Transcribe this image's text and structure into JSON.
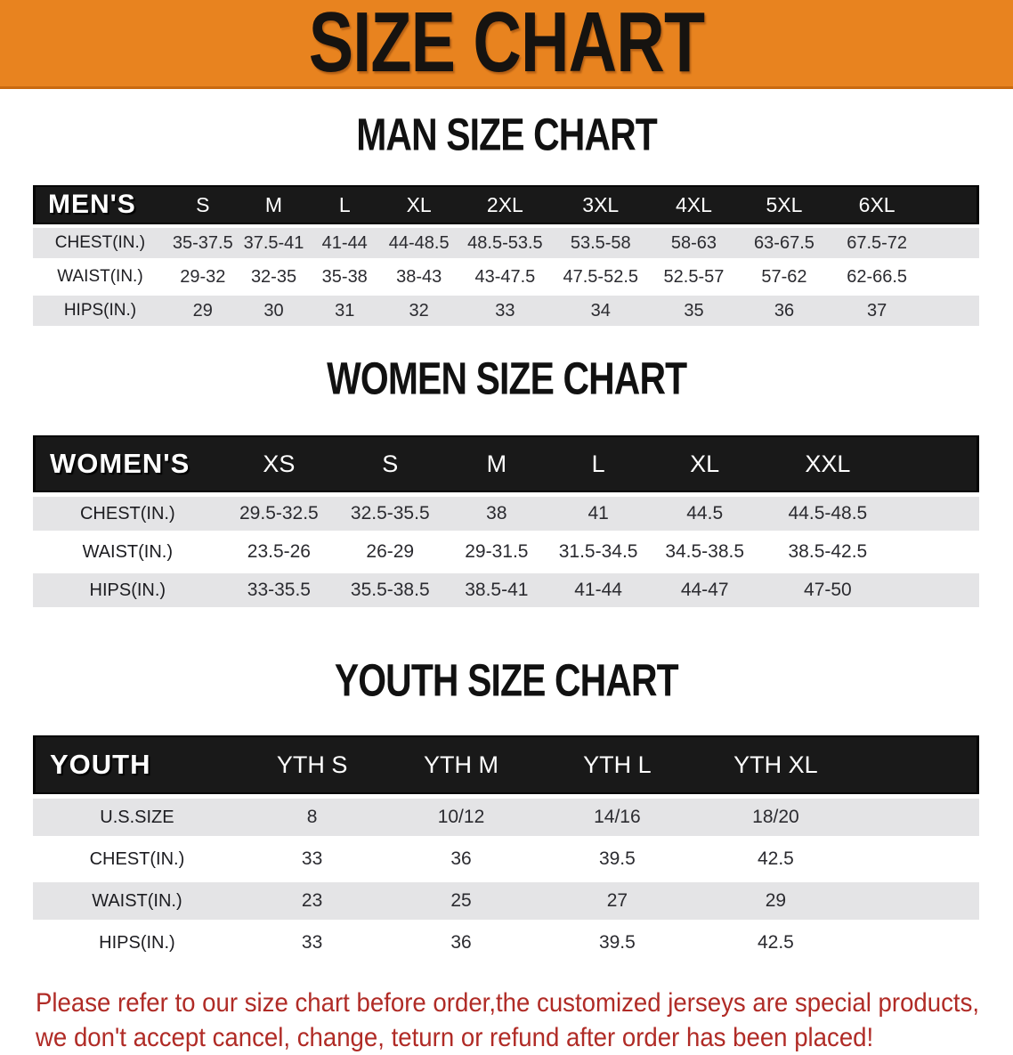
{
  "banner": {
    "title": "SIZE CHART",
    "bg_color": "#E8831F",
    "edge_color": "#C9690F"
  },
  "sections": {
    "men": {
      "title": "MAN SIZE CHART",
      "table": {
        "label": "MEN'S",
        "columns": [
          "S",
          "M",
          "L",
          "XL",
          "2XL",
          "3XL",
          "4XL",
          "5XL",
          "6XL"
        ],
        "rows": [
          {
            "label": "CHEST(IN.)",
            "values": [
              "35-37.5",
              "37.5-41",
              "41-44",
              "44-48.5",
              "48.5-53.5",
              "53.5-58",
              "58-63",
              "63-67.5",
              "67.5-72"
            ]
          },
          {
            "label": "WAIST(IN.)",
            "values": [
              "29-32",
              "32-35",
              "35-38",
              "38-43",
              "43-47.5",
              "47.5-52.5",
              "52.5-57",
              "57-62",
              "62-66.5"
            ]
          },
          {
            "label": "HIPS(IN.)",
            "values": [
              "29",
              "30",
              "31",
              "32",
              "33",
              "34",
              "35",
              "36",
              "37"
            ]
          }
        ]
      }
    },
    "women": {
      "title": "WOMEN SIZE CHART",
      "table": {
        "label": "WOMEN'S",
        "columns": [
          "XS",
          "S",
          "M",
          "L",
          "XL",
          "XXL"
        ],
        "rows": [
          {
            "label": "CHEST(IN.)",
            "values": [
              "29.5-32.5",
              "32.5-35.5",
              "38",
              "41",
              "44.5",
              "44.5-48.5"
            ]
          },
          {
            "label": "WAIST(IN.)",
            "values": [
              "23.5-26",
              "26-29",
              "29-31.5",
              "31.5-34.5",
              "34.5-38.5",
              "38.5-42.5"
            ]
          },
          {
            "label": "HIPS(IN.)",
            "values": [
              "33-35.5",
              "35.5-38.5",
              "38.5-41",
              "41-44",
              "44-47",
              "47-50"
            ]
          }
        ]
      }
    },
    "youth": {
      "title": "YOUTH SIZE CHART",
      "table": {
        "label": "YOUTH",
        "columns": [
          "YTH S",
          "YTH M",
          "YTH L",
          "YTH XL"
        ],
        "rows": [
          {
            "label": "U.S.SIZE",
            "values": [
              "8",
              "10/12",
              "14/16",
              "18/20"
            ]
          },
          {
            "label": "CHEST(IN.)",
            "values": [
              "33",
              "36",
              "39.5",
              "42.5"
            ]
          },
          {
            "label": "WAIST(IN.)",
            "values": [
              "23",
              "25",
              "27",
              "29"
            ]
          },
          {
            "label": "HIPS(IN.)",
            "values": [
              "33",
              "36",
              "39.5",
              "42.5"
            ]
          }
        ]
      }
    }
  },
  "disclaimer": {
    "line1": "Please refer to our size chart before order,the customized jerseys are special products,",
    "line2": "we don't accept cancel, change, teturn or refund after order has been placed!",
    "color": "#B02B26"
  }
}
